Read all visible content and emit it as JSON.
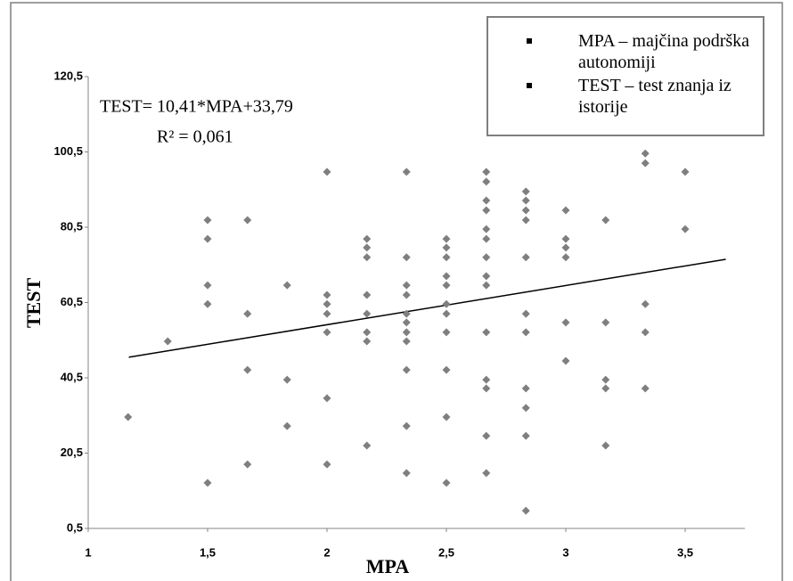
{
  "chart_data": {
    "type": "scatter",
    "x_label": "MPA",
    "y_label": "TEST",
    "annotations": [
      "TEST= 10,41*MPA+33,79",
      "R² = 0,061"
    ],
    "legend_items": [
      "MPA – majčina podrška autonomiji",
      "TEST –  test znanja iz istorije"
    ],
    "legend_position": "top-right",
    "xlim": [
      1,
      3.75
    ],
    "ylim": [
      0.5,
      120.5
    ],
    "xticks": [
      1,
      {
        "value": 1.5,
        "label": "1,5"
      },
      2,
      {
        "value": 2.5,
        "label": "2,5"
      },
      3,
      {
        "value": 3.5,
        "label": "3,5"
      }
    ],
    "yticks": [
      {
        "value": 0.5,
        "label": "0,5"
      },
      {
        "value": 20.5,
        "label": "20,5"
      },
      {
        "value": 40.5,
        "label": "40,5"
      },
      {
        "value": 60.5,
        "label": "60,5"
      },
      {
        "value": 80.5,
        "label": "80,5"
      },
      {
        "value": 100.5,
        "label": "100,5"
      },
      {
        "value": 120.5,
        "label": "120,5"
      }
    ],
    "grid": false,
    "color": "#7f7f7f",
    "trendline": {
      "x": [
        1.17,
        3.67
      ],
      "y": [
        45.97,
        71.99
      ],
      "color": "#000000"
    },
    "x": [
      1.167,
      1.333,
      1.5,
      1.5,
      1.5,
      1.5,
      1.5,
      1.667,
      1.667,
      1.667,
      1.667,
      1.833,
      1.833,
      1.833,
      2,
      2,
      2,
      2,
      2,
      2,
      2,
      2.167,
      2.167,
      2.167,
      2.167,
      2.167,
      2.167,
      2.167,
      2.167,
      2.333,
      2.333,
      2.333,
      2.333,
      2.333,
      2.333,
      2.333,
      2.333,
      2.333,
      2.333,
      2.333,
      2.5,
      2.5,
      2.5,
      2.5,
      2.5,
      2.5,
      2.5,
      2.5,
      2.5,
      2.5,
      2.5,
      2.667,
      2.667,
      2.667,
      2.667,
      2.667,
      2.667,
      2.667,
      2.667,
      2.667,
      2.667,
      2.667,
      2.667,
      2.667,
      2.667,
      2.833,
      2.833,
      2.833,
      2.833,
      2.833,
      2.833,
      2.833,
      2.833,
      2.833,
      2.833,
      2.833,
      3,
      3,
      3,
      3,
      3,
      3,
      3.167,
      3.167,
      3.167,
      3.167,
      3.167,
      3.333,
      3.333,
      3.333,
      3.333,
      3.333,
      3.5,
      3.5
    ],
    "values": [
      30.1,
      50.2,
      82.4,
      77.4,
      65.1,
      60.1,
      12.6,
      82.4,
      57.5,
      42.6,
      17.5,
      65.1,
      40.0,
      27.7,
      95.2,
      62.5,
      60.1,
      57.5,
      52.6,
      35.1,
      17.5,
      77.4,
      75.1,
      72.5,
      62.5,
      57.5,
      52.6,
      50.2,
      22.5,
      95.2,
      72.5,
      65.1,
      62.5,
      57.5,
      55.2,
      52.6,
      50.2,
      42.6,
      27.7,
      15.2,
      77.4,
      75.1,
      72.5,
      67.5,
      65.1,
      60.1,
      57.5,
      52.6,
      42.6,
      30.1,
      12.6,
      95.2,
      92.6,
      87.6,
      85.0,
      80.0,
      77.4,
      72.5,
      67.5,
      65.1,
      52.6,
      40.0,
      37.7,
      25.1,
      15.2,
      90.0,
      87.6,
      85.0,
      82.4,
      72.5,
      57.5,
      52.6,
      37.7,
      32.5,
      25.1,
      5.2,
      85.0,
      77.4,
      75.1,
      72.5,
      55.2,
      45.0,
      82.4,
      55.2,
      40.0,
      37.7,
      22.5,
      100.1,
      97.5,
      60.1,
      52.6,
      37.7,
      95.2,
      80.0
    ]
  }
}
